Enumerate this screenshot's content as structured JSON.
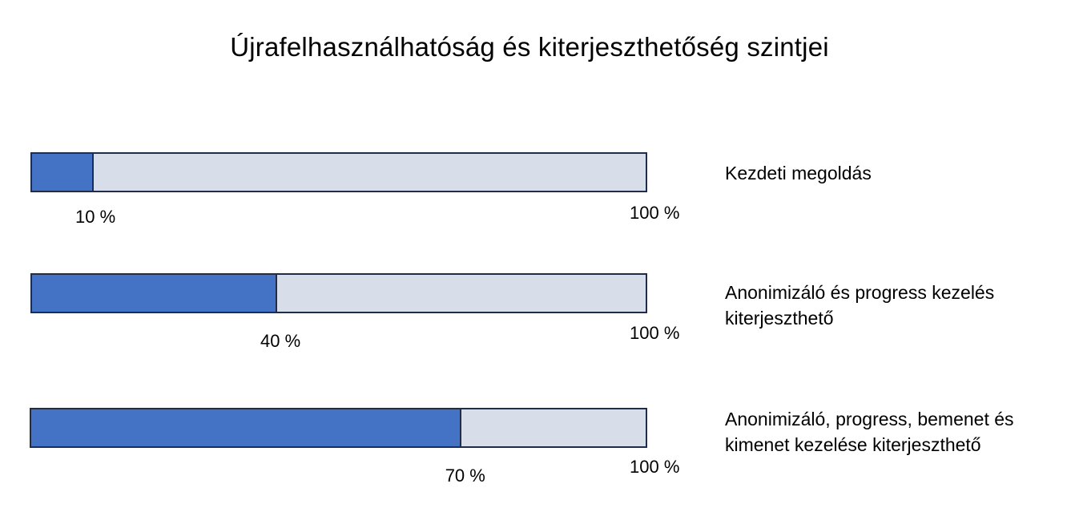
{
  "title": "Újrafelhasználhatóság és kiterjeszthetőség szintjei",
  "levels": [
    {
      "label": "Kezdeti megoldás",
      "value": 10,
      "value_text": "10 %",
      "max_text": "100 %"
    },
    {
      "label": "Anonimizáló és progress kezelés kiterjeszthető",
      "value": 40,
      "value_text": "40 %",
      "max_text": "100 %"
    },
    {
      "label": "Anonimizáló, progress, bemenet és kimenet kezelése kiterjeszthető",
      "value": 70,
      "value_text": "70 %",
      "max_text": "100 %"
    }
  ],
  "colors": {
    "fill": "#4472c4",
    "track": "#d7dee9",
    "border": "#1f2d4a"
  }
}
